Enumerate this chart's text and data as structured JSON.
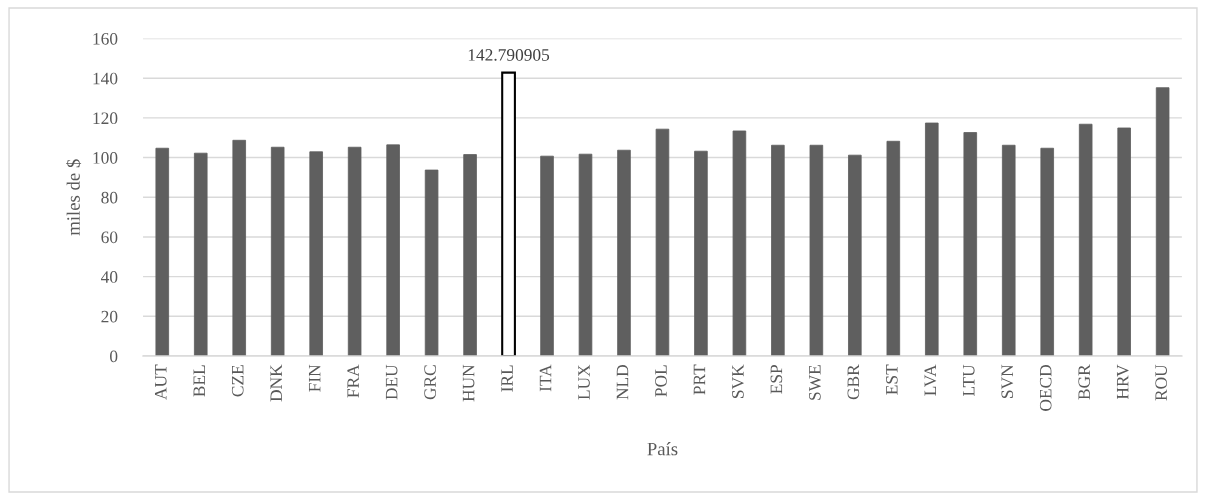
{
  "chart_data": {
    "type": "bar",
    "xlabel": "País",
    "ylabel": "miles de $",
    "categories": [
      "AUT",
      "BEL",
      "CZE",
      "DNK",
      "FIN",
      "FRA",
      "DEU",
      "GRC",
      "HUN",
      "IRL",
      "ITA",
      "LUX",
      "NLD",
      "POL",
      "PRT",
      "SVK",
      "ESP",
      "SWE",
      "GBR",
      "EST",
      "LVA",
      "LTU",
      "SVN",
      "OECD",
      "BGR",
      "HRV",
      "ROU"
    ],
    "values": [
      104.7,
      102.2,
      108.7,
      105.2,
      102.9,
      105.2,
      106.4,
      93.7,
      101.5,
      142.790905,
      100.7,
      101.7,
      103.7,
      114.3,
      103.2,
      113.4,
      106.2,
      106.2,
      101.2,
      108.2,
      117.4,
      112.6,
      106.2,
      104.7,
      116.8,
      114.9,
      135.2
    ],
    "colors": [
      "#5f5f5f",
      "#5f5f5f",
      "#5f5f5f",
      "#5f5f5f",
      "#5f5f5f",
      "#5f5f5f",
      "#5f5f5f",
      "#5f5f5f",
      "#5f5f5f",
      "#ffffff",
      "#5f5f5f",
      "#5f5f5f",
      "#5f5f5f",
      "#5f5f5f",
      "#5f5f5f",
      "#5f5f5f",
      "#5f5f5f",
      "#5f5f5f",
      "#5f5f5f",
      "#5f5f5f",
      "#5f5f5f",
      "#5f5f5f",
      "#5f5f5f",
      "#5f5f5f",
      "#5f5f5f",
      "#5f5f5f",
      "#5f5f5f"
    ],
    "value_labels": [
      null,
      null,
      null,
      null,
      null,
      null,
      null,
      null,
      null,
      "142.790905",
      null,
      null,
      null,
      null,
      null,
      null,
      null,
      null,
      null,
      null,
      null,
      null,
      null,
      null,
      null,
      null,
      null
    ],
    "ylim": [
      0,
      160
    ],
    "yticks": [
      0,
      20,
      40,
      60,
      80,
      100,
      120,
      140,
      160
    ],
    "grid": "y"
  }
}
